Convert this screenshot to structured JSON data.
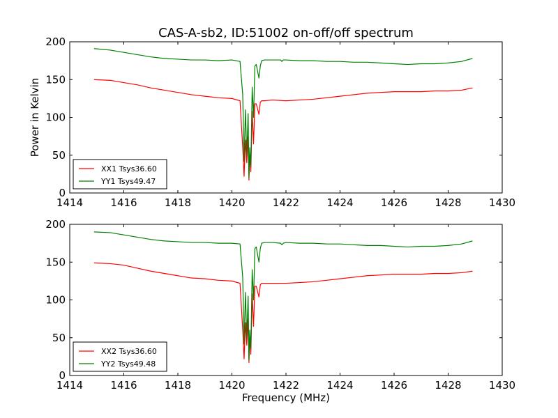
{
  "figure_title": "CAS-A-sb2, ID:51002 on-off/off spectrum",
  "colors": {
    "series_1": "#ff0000",
    "series_2": "#008000"
  },
  "chart_data": [
    {
      "type": "line",
      "title": "CAS-A-sb2, ID:51002 on-off/off spectrum",
      "xlabel": "",
      "ylabel": "Power in Kelvin",
      "xlim": [
        1414,
        1430
      ],
      "ylim": [
        0,
        200
      ],
      "xticks": [
        1414,
        1416,
        1418,
        1420,
        1422,
        1424,
        1426,
        1428,
        1430
      ],
      "yticks": [
        0,
        50,
        100,
        150,
        200
      ],
      "grid": false,
      "legend_position": "lower-left",
      "series": [
        {
          "name": "XX1 Tsys36.60",
          "color": "#ff0000",
          "x": [
            1414.9,
            1415.5,
            1416.0,
            1416.5,
            1417.0,
            1417.5,
            1418.0,
            1418.5,
            1419.0,
            1419.5,
            1420.0,
            1420.3,
            1420.4,
            1420.45,
            1420.5,
            1420.55,
            1420.6,
            1420.63,
            1420.66,
            1420.7,
            1420.75,
            1420.8,
            1420.85,
            1420.9,
            1421.0,
            1421.05,
            1421.1,
            1421.2,
            1421.5,
            1422.0,
            1422.5,
            1423.0,
            1423.5,
            1424.0,
            1424.5,
            1425.0,
            1425.5,
            1426.0,
            1426.5,
            1427.0,
            1427.5,
            1428.0,
            1428.5,
            1428.9
          ],
          "y": [
            150,
            149,
            146,
            143,
            139,
            136,
            133,
            130,
            128,
            126,
            125,
            122,
            60,
            22,
            70,
            40,
            75,
            17,
            50,
            28,
            108,
            65,
            118,
            118,
            104,
            120,
            122,
            122,
            123,
            122,
            123,
            124,
            126,
            128,
            130,
            132,
            133,
            134,
            134,
            134,
            135,
            135,
            136,
            139
          ]
        },
        {
          "name": "YY1 Tsys49.47",
          "color": "#008000",
          "x": [
            1414.9,
            1415.5,
            1416.0,
            1416.5,
            1417.0,
            1417.5,
            1418.0,
            1418.5,
            1419.0,
            1419.5,
            1420.0,
            1420.3,
            1420.4,
            1420.45,
            1420.5,
            1420.55,
            1420.6,
            1420.63,
            1420.66,
            1420.7,
            1420.75,
            1420.8,
            1420.85,
            1420.9,
            1421.0,
            1421.05,
            1421.1,
            1421.2,
            1421.5,
            1421.8,
            1421.85,
            1421.9,
            1422.0,
            1422.5,
            1423.0,
            1423.5,
            1424.0,
            1424.5,
            1425.0,
            1425.5,
            1426.0,
            1426.5,
            1427.0,
            1427.5,
            1428.0,
            1428.5,
            1428.9
          ],
          "y": [
            191,
            189,
            186,
            183,
            180,
            178,
            177,
            176,
            176,
            175,
            176,
            174,
            130,
            42,
            110,
            50,
            105,
            20,
            60,
            35,
            140,
            100,
            168,
            170,
            152,
            168,
            175,
            176,
            176,
            176,
            174,
            176,
            176,
            175,
            175,
            174,
            174,
            173,
            173,
            172,
            171,
            170,
            171,
            171,
            172,
            174,
            178
          ]
        }
      ]
    },
    {
      "type": "line",
      "title": "",
      "xlabel": "Frequency (MHz)",
      "ylabel": "",
      "xlim": [
        1414,
        1430
      ],
      "ylim": [
        0,
        200
      ],
      "xticks": [
        1414,
        1416,
        1418,
        1420,
        1422,
        1424,
        1426,
        1428,
        1430
      ],
      "yticks": [
        0,
        50,
        100,
        150,
        200
      ],
      "grid": false,
      "legend_position": "lower-left",
      "series": [
        {
          "name": "XX2 Tsys36.60",
          "color": "#ff0000",
          "x": [
            1414.9,
            1415.5,
            1416.0,
            1416.5,
            1417.0,
            1417.5,
            1418.0,
            1418.5,
            1419.0,
            1419.5,
            1420.0,
            1420.3,
            1420.4,
            1420.45,
            1420.5,
            1420.55,
            1420.6,
            1420.63,
            1420.66,
            1420.7,
            1420.75,
            1420.8,
            1420.85,
            1420.9,
            1421.0,
            1421.05,
            1421.1,
            1421.2,
            1421.5,
            1422.0,
            1422.5,
            1423.0,
            1423.5,
            1424.0,
            1424.5,
            1425.0,
            1425.5,
            1426.0,
            1426.5,
            1427.0,
            1427.5,
            1428.0,
            1428.5,
            1428.9
          ],
          "y": [
            149,
            148,
            146,
            142,
            138,
            135,
            132,
            129,
            128,
            126,
            125,
            122,
            60,
            22,
            70,
            40,
            75,
            17,
            50,
            28,
            108,
            65,
            118,
            118,
            104,
            120,
            122,
            122,
            122,
            122,
            123,
            124,
            126,
            128,
            130,
            132,
            133,
            134,
            134,
            134,
            135,
            135,
            136,
            138
          ]
        },
        {
          "name": "YY2 Tsys49.48",
          "color": "#008000",
          "x": [
            1414.9,
            1415.5,
            1416.0,
            1416.5,
            1417.0,
            1417.5,
            1418.0,
            1418.5,
            1419.0,
            1419.5,
            1420.0,
            1420.3,
            1420.4,
            1420.45,
            1420.5,
            1420.55,
            1420.6,
            1420.63,
            1420.66,
            1420.7,
            1420.75,
            1420.8,
            1420.85,
            1420.9,
            1421.0,
            1421.05,
            1421.1,
            1421.2,
            1421.5,
            1421.8,
            1421.85,
            1421.9,
            1422.0,
            1422.5,
            1423.0,
            1423.5,
            1424.0,
            1424.5,
            1425.0,
            1425.5,
            1426.0,
            1426.5,
            1427.0,
            1427.5,
            1428.0,
            1428.5,
            1428.9
          ],
          "y": [
            190,
            189,
            186,
            183,
            180,
            178,
            177,
            176,
            176,
            175,
            175,
            174,
            130,
            42,
            110,
            50,
            105,
            20,
            60,
            35,
            140,
            100,
            168,
            170,
            150,
            168,
            175,
            176,
            176,
            175,
            173,
            175,
            176,
            175,
            175,
            174,
            174,
            173,
            172,
            172,
            171,
            170,
            171,
            171,
            172,
            174,
            178
          ]
        }
      ]
    }
  ]
}
